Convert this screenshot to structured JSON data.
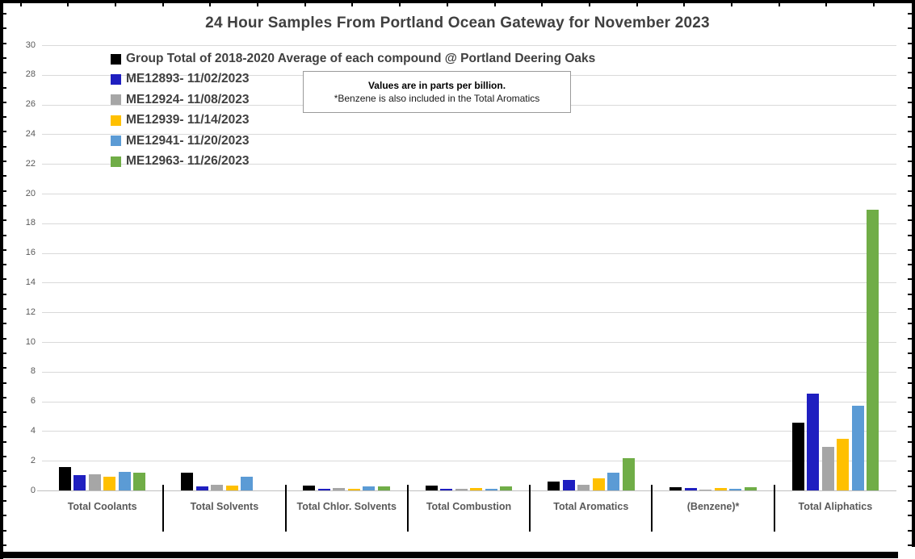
{
  "title": "24 Hour Samples From Portland Ocean Gateway for November 2023",
  "annotation": {
    "line1": "Values are in parts per billion.",
    "line2": "*Benzene is also included in the Total Aromatics"
  },
  "colors": {
    "grid": "#d9d9d9",
    "axis_zero_line": "#bfbfbf",
    "text_dark": "#404040",
    "text_axis": "#595959",
    "frame": "#000000"
  },
  "chart_data": {
    "type": "bar",
    "title": "24 Hour Samples From Portland Ocean Gateway for November 2023",
    "units_note": "parts per billion",
    "categories": [
      "Total Coolants",
      "Total Solvents",
      "Total Chlor. Solvents",
      "Total Combustion",
      "Total Aromatics",
      "(Benzene)*",
      "Total Aliphatics"
    ],
    "series": [
      {
        "name": "Group Total of 2018-2020 Average of each compound @ Portland Deering Oaks",
        "color": "#000000",
        "values": [
          1.55,
          1.2,
          0.35,
          0.3,
          0.6,
          0.2,
          4.55
        ]
      },
      {
        "name": "ME12893- 11/02/2023",
        "color": "#1f1fc0",
        "values": [
          1.05,
          0.25,
          0.1,
          0.1,
          0.7,
          0.18,
          6.5
        ]
      },
      {
        "name": "ME12924- 11/08/2023",
        "color": "#a6a6a6",
        "values": [
          1.1,
          0.38,
          0.15,
          0.1,
          0.4,
          0.08,
          2.95
        ]
      },
      {
        "name": "ME12939- 11/14/2023",
        "color": "#ffc000",
        "values": [
          0.9,
          0.35,
          0.13,
          0.15,
          0.8,
          0.15,
          3.5
        ]
      },
      {
        "name": "ME12941- 11/20/2023",
        "color": "#5b9bd5",
        "values": [
          1.25,
          0.9,
          0.25,
          0.13,
          1.2,
          0.12,
          5.7
        ]
      },
      {
        "name": "ME12963- 11/26/2023",
        "color": "#70ad47",
        "values": [
          1.2,
          0,
          0.25,
          0.25,
          2.15,
          0.2,
          18.9
        ]
      }
    ],
    "ylim": [
      0,
      30
    ],
    "ytick_step": 2,
    "yticks": [
      "0",
      "2",
      "4",
      "6",
      "8",
      "10",
      "12",
      "14",
      "16",
      "18",
      "20",
      "22",
      "24",
      "26",
      "28",
      "30"
    ],
    "grid": true,
    "legend_position": "top-left"
  }
}
